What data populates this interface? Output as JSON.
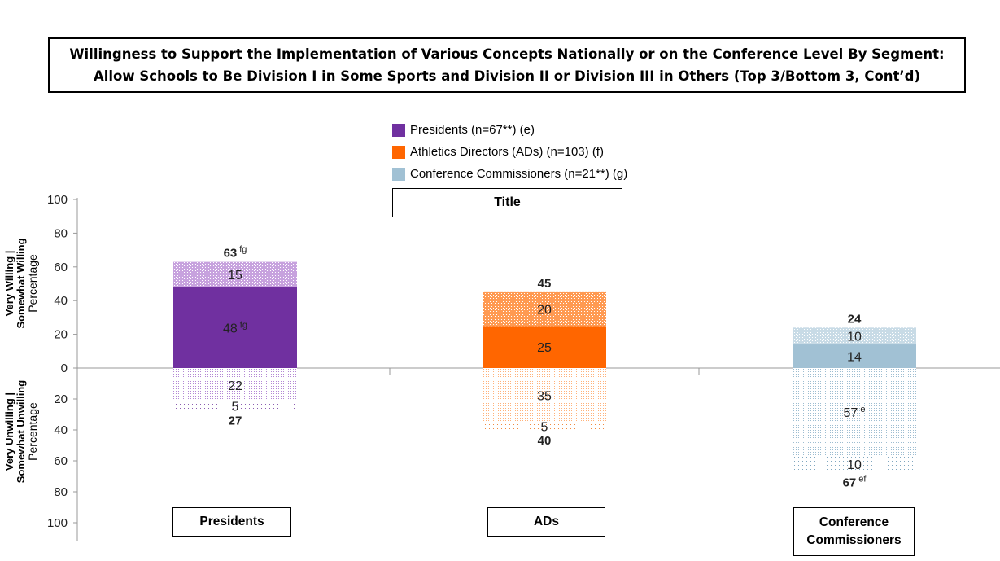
{
  "page": {
    "title_line1": "Willingness to Support the Implementation of Various Concepts Nationally or on the Conference Level By Segment:",
    "title_line2": "Allow Schools to Be Division I in Some Sports and Division II or Division III in Others (Top 3/Bottom 3, Cont’d)",
    "panel_title": "Title"
  },
  "colors": {
    "presidents": "#7030a0",
    "ads": "#ff6600",
    "commissioners": "#a1c1d4"
  },
  "chart_data": {
    "type": "bar",
    "title": "Willingness to Support the Implementation of Various Concepts Nationally or on the Conference Level By Segment: Allow Schools to Be Division I in Some Sports and Division II or Division III in Others (Top 3/Bottom 3, Cont’d)",
    "categories": [
      "Presidents",
      "ADs",
      "Conference\nCommissioners"
    ],
    "legend": [
      "Presidents (n=67**) (e)",
      "Athletics Directors (ADs) (n=103) (f)",
      "Conference Commissioners (n=21**) (g)"
    ],
    "legend_placement": "top-center",
    "y_axis_top": {
      "line1": "Very Willing |",
      "line2": "Somewhat Willing",
      "label": "Percentage"
    },
    "y_axis_bottom": {
      "line1": "Very Unwilling |",
      "line2": "Somewhat Unwilling",
      "label": "Percentage"
    },
    "ylim": [
      -100,
      100
    ],
    "yticks": [
      100,
      80,
      60,
      40,
      20,
      0,
      20,
      40,
      60,
      80,
      100
    ],
    "series": [
      {
        "name": "Very Willing",
        "values": [
          48,
          25,
          14
        ],
        "labels": [
          "48",
          "25",
          "14"
        ],
        "sups": [
          "fg",
          "",
          ""
        ]
      },
      {
        "name": "Somewhat Willing",
        "values": [
          15,
          20,
          10
        ],
        "labels": [
          "15",
          "20",
          "10"
        ],
        "sups": [
          "",
          "",
          ""
        ]
      },
      {
        "name": "Somewhat Unwilling",
        "values": [
          22,
          35,
          57
        ],
        "labels": [
          "22",
          "35",
          "57"
        ],
        "sups": [
          "",
          "",
          "e"
        ]
      },
      {
        "name": "Very Unwilling",
        "values": [
          5,
          5,
          10
        ],
        "labels": [
          "5",
          "5",
          "10"
        ],
        "sups": [
          "",
          "",
          ""
        ]
      }
    ],
    "totals_top": [
      {
        "value": "63",
        "sup": "fg"
      },
      {
        "value": "45",
        "sup": ""
      },
      {
        "value": "24",
        "sup": ""
      }
    ],
    "totals_bottom": [
      {
        "value": "27",
        "sup": ""
      },
      {
        "value": "40",
        "sup": ""
      },
      {
        "value": "67",
        "sup": "ef"
      }
    ]
  }
}
